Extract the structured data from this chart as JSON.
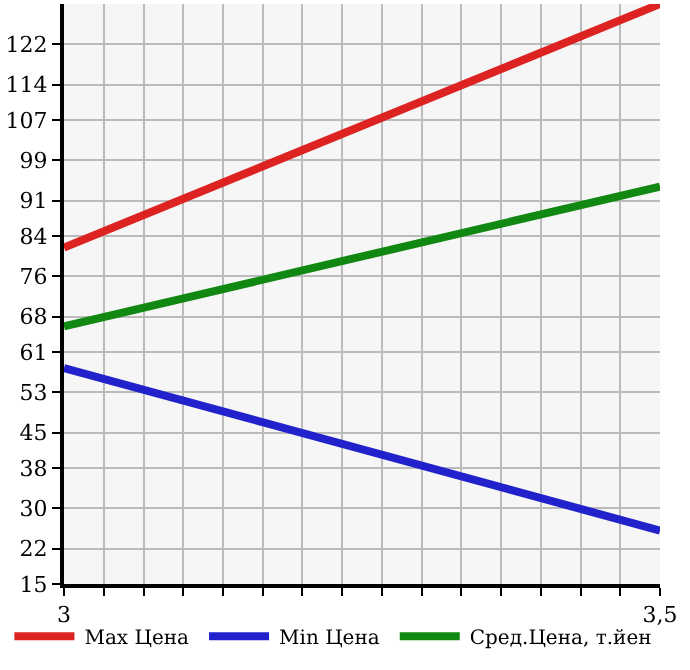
{
  "chart_data": {
    "type": "line",
    "x": [
      3,
      3.5
    ],
    "series": [
      {
        "name": "Max Цена",
        "color": "#dd2222",
        "values": [
          81.7,
          130
        ]
      },
      {
        "name": "Min Цена",
        "color": "#2222cc",
        "values": [
          57.8,
          25.6
        ]
      },
      {
        "name": "Сред.Цена, т.йен",
        "color": "#118811",
        "values": [
          66.1,
          93.8
        ]
      }
    ],
    "xlim": [
      3,
      3.5
    ],
    "xticks": [
      3,
      {
        "value": 3.0333,
        "label": null
      },
      {
        "value": 3.0667,
        "label": null
      },
      {
        "value": 3.1,
        "label": null
      },
      {
        "value": 3.1333,
        "label": null
      },
      {
        "value": 3.1667,
        "label": null
      },
      {
        "value": 3.2,
        "label": null
      },
      {
        "value": 3.2333,
        "label": null
      },
      {
        "value": 3.2667,
        "label": null
      },
      {
        "value": 3.3,
        "label": null
      },
      {
        "value": 3.3333,
        "label": null
      },
      {
        "value": 3.3667,
        "label": null
      },
      {
        "value": 3.4,
        "label": null
      },
      {
        "value": 3.4333,
        "label": null
      },
      {
        "value": 3.4667,
        "label": null
      },
      {
        "value": 3.5,
        "label": "3,5"
      }
    ],
    "ylim": [
      15,
      130
    ],
    "yticks": [
      15,
      22,
      30,
      38,
      45,
      53,
      61,
      68,
      76,
      84,
      91,
      99,
      107,
      114,
      122
    ],
    "grid": true,
    "legend": "bottom",
    "marker": "none",
    "line_style": "solid"
  }
}
